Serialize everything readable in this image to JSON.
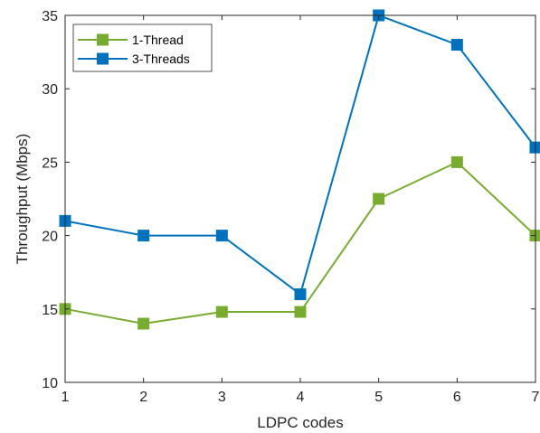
{
  "chart_data": {
    "type": "line",
    "title": "",
    "xlabel": "LDPC codes",
    "ylabel": "Throughput (Mbps)",
    "xlim": [
      1,
      7
    ],
    "ylim": [
      10,
      35
    ],
    "xticks": [
      "1",
      "2",
      "3",
      "4",
      "5",
      "6",
      "7"
    ],
    "yticks": [
      "10",
      "15",
      "20",
      "25",
      "30",
      "35"
    ],
    "grid": false,
    "legend_position": "top-left",
    "series": [
      {
        "name": "1-Thread",
        "color": "#77AC30",
        "marker": "square",
        "x": [
          1,
          2,
          3,
          4,
          5,
          6,
          7
        ],
        "values": [
          15,
          14,
          14.8,
          14.8,
          22.5,
          25,
          20
        ]
      },
      {
        "name": "3-Threads",
        "color": "#0072BD",
        "marker": "square",
        "x": [
          1,
          2,
          3,
          4,
          5,
          6,
          7
        ],
        "values": [
          21,
          20,
          20,
          16,
          35,
          33,
          26
        ]
      }
    ]
  }
}
